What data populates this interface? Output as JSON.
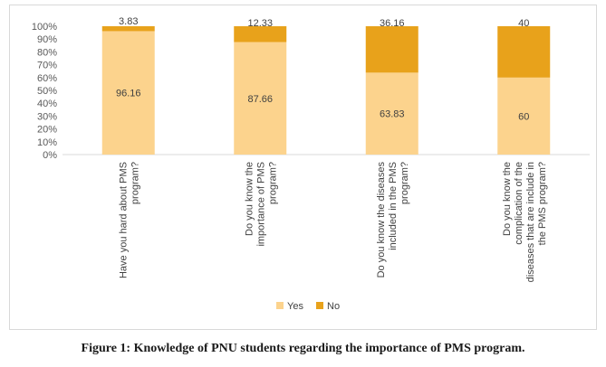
{
  "chart_data": {
    "type": "bar",
    "stacked": true,
    "percent": true,
    "categories": [
      [
        "Have you hard about PMS",
        "program?"
      ],
      [
        "Do you know the",
        "importance of PMS",
        "program?"
      ],
      [
        "Do you know the diseases",
        "included in the PMS",
        "program?"
      ],
      [
        "Do you know the",
        "complication of the",
        "diseases that are include in",
        "the PMS program?"
      ]
    ],
    "series": [
      {
        "name": "Yes",
        "values": [
          96.16,
          87.66,
          63.83,
          60
        ],
        "labels": [
          "96.16",
          "87.66",
          "63.83",
          "60"
        ],
        "color": "#fcd38d"
      },
      {
        "name": "No",
        "values": [
          3.83,
          12.33,
          36.16,
          40
        ],
        "labels": [
          "3.83",
          "12.33",
          "36.16",
          "40"
        ],
        "color": "#e8a21b"
      }
    ],
    "ylim": [
      0,
      100
    ],
    "yticks": [
      "0%",
      "10%",
      "20%",
      "30%",
      "40%",
      "50%",
      "60%",
      "70%",
      "80%",
      "90%",
      "100%"
    ],
    "legend": "bottom"
  },
  "caption": "Figure 1: Knowledge of PNU students regarding the importance of PMS program."
}
